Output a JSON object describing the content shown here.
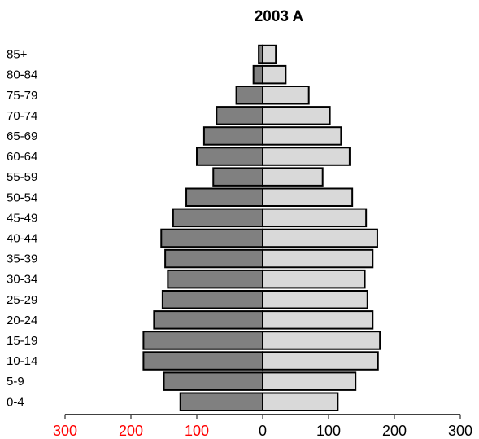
{
  "chart_data": {
    "type": "bar",
    "orientation": "horizontal-diverging",
    "title": "2003 A",
    "categories": [
      "0-4",
      "5-9",
      "10-14",
      "15-19",
      "20-24",
      "25-29",
      "30-34",
      "35-39",
      "40-44",
      "45-49",
      "50-54",
      "55-59",
      "60-64",
      "65-69",
      "70-74",
      "75-79",
      "80-84",
      "85+"
    ],
    "series": [
      {
        "values": [
          -125,
          -150,
          -181,
          -181,
          -165,
          -152,
          -144,
          -148,
          -154,
          -136,
          -116,
          -75,
          -100,
          -89,
          -70,
          -40,
          -14,
          -6
        ],
        "color": "#808080"
      },
      {
        "values": [
          114,
          141,
          175,
          178,
          167,
          159,
          155,
          167,
          174,
          157,
          136,
          91,
          132,
          119,
          102,
          70,
          35,
          20
        ],
        "color": "#d9d9d9"
      }
    ],
    "xlim": [
      -300,
      300
    ],
    "x_ticks": [
      {
        "value": -300,
        "label": "300",
        "color": "#ff0000"
      },
      {
        "value": -200,
        "label": "200",
        "color": "#ff0000"
      },
      {
        "value": -100,
        "label": "100",
        "color": "#ff0000"
      },
      {
        "value": 0,
        "label": "0",
        "color": "#000000"
      },
      {
        "value": 100,
        "label": "100",
        "color": "#000000"
      },
      {
        "value": 200,
        "label": "200",
        "color": "#000000"
      },
      {
        "value": 300,
        "label": "300",
        "color": "#000000"
      }
    ],
    "grid": false,
    "legend": "none"
  }
}
